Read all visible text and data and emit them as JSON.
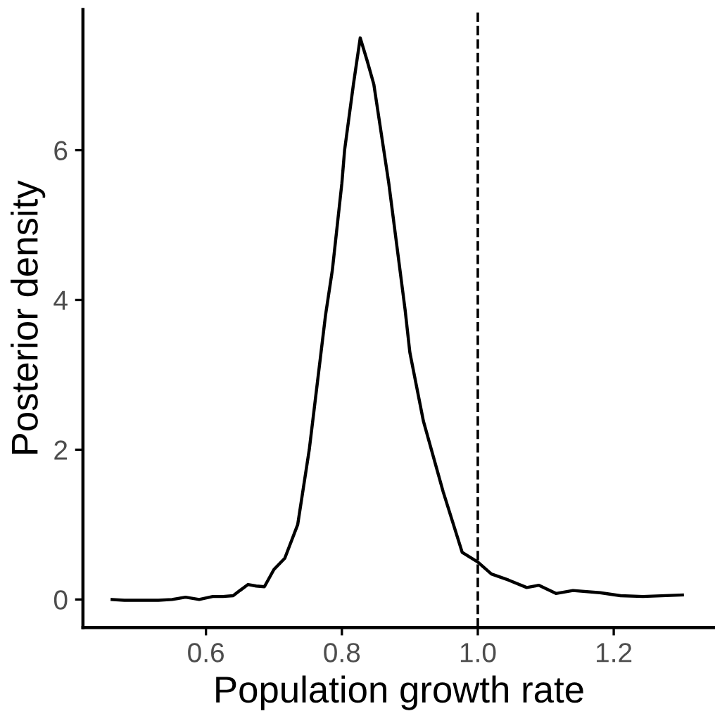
{
  "chart_data": {
    "type": "line",
    "xlabel": "Population growth rate",
    "ylabel": "Posterior density",
    "xlim": [
      0.419,
      1.349
    ],
    "ylim": [
      -0.375,
      7.88
    ],
    "xticks": [
      {
        "value": 0.6,
        "label": "0.6"
      },
      {
        "value": 0.8,
        "label": "0.8"
      },
      {
        "value": 1.0,
        "label": "1.0"
      },
      {
        "value": 1.2,
        "label": "1.2"
      }
    ],
    "yticks": [
      0,
      2,
      4,
      6
    ],
    "grid": false,
    "marker": "none",
    "line_style": "solid",
    "series": [
      {
        "color": "#000000",
        "x": [
          0.462,
          0.48,
          0.5,
          0.53,
          0.55,
          0.57,
          0.59,
          0.61,
          0.625,
          0.64,
          0.65,
          0.662,
          0.674,
          0.686,
          0.7,
          0.716,
          0.735,
          0.752,
          0.776,
          0.786,
          0.8,
          0.804,
          0.817,
          0.827,
          0.837,
          0.847,
          0.869,
          0.893,
          0.9,
          0.92,
          0.949,
          0.977,
          1.0,
          1.02,
          1.045,
          1.072,
          1.09,
          1.115,
          1.14,
          1.18,
          1.21,
          1.243,
          1.301
        ],
        "values": [
          0.0,
          -0.01,
          -0.01,
          -0.01,
          0.0,
          0.03,
          0.0,
          0.04,
          0.04,
          0.05,
          0.12,
          0.2,
          0.18,
          0.17,
          0.4,
          0.55,
          1.0,
          2.0,
          3.8,
          4.4,
          5.56,
          6.0,
          6.88,
          7.5,
          7.2,
          6.88,
          5.56,
          3.87,
          3.3,
          2.38,
          1.44,
          0.63,
          0.5,
          0.34,
          0.26,
          0.16,
          0.19,
          0.08,
          0.12,
          0.09,
          0.05,
          0.04,
          0.06
        ]
      }
    ],
    "ref_lines": [
      {
        "axis": "x",
        "value": 1.0,
        "line_style": "dashed",
        "color": "#000000"
      }
    ]
  }
}
